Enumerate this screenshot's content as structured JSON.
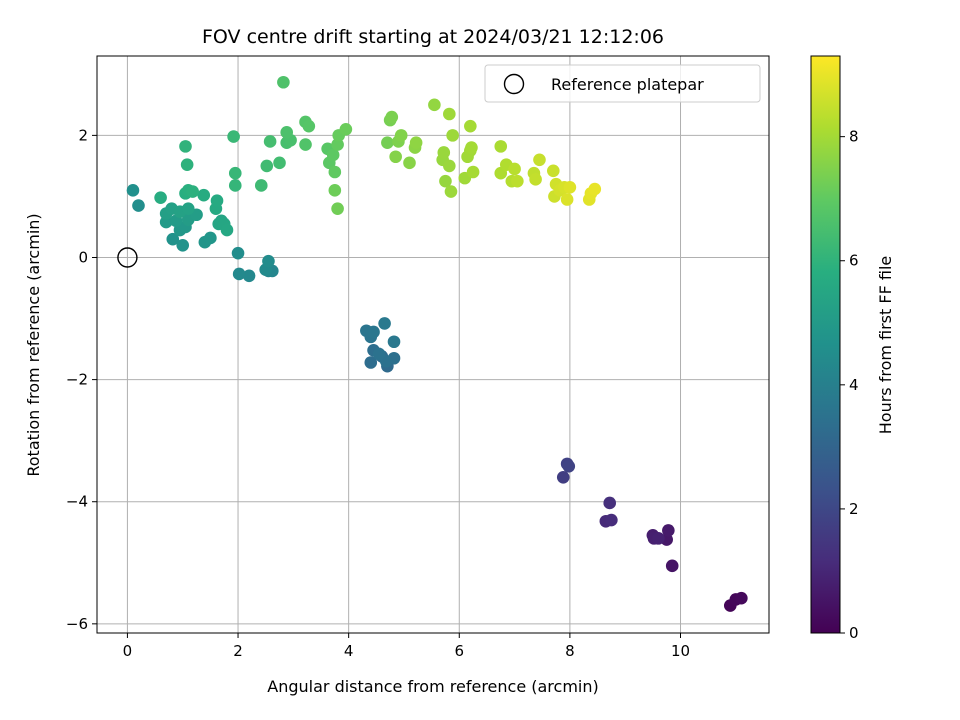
{
  "chart_data": {
    "type": "scatter",
    "title": "FOV centre drift starting at 2024/03/21 12:12:06",
    "xlabel": "Angular distance from reference (arcmin)",
    "ylabel": "Rotation from reference (arcmin)",
    "xlim": [
      -0.55,
      11.6
    ],
    "ylim": [
      -6.15,
      3.3
    ],
    "xticks": [
      0,
      2,
      4,
      6,
      8,
      10
    ],
    "yticks": [
      -6,
      -4,
      -2,
      0,
      2
    ],
    "xtick_labels": [
      "0",
      "2",
      "4",
      "6",
      "8",
      "10"
    ],
    "ytick_labels": [
      "−6",
      "−4",
      "−2",
      "0",
      "2"
    ],
    "grid": true,
    "colormap": "viridis",
    "colorbar": {
      "label": "Hours from first FF file",
      "range": [
        0,
        9.3
      ],
      "ticks": [
        0,
        2,
        4,
        6,
        8
      ],
      "tick_labels": [
        "0",
        "2",
        "4",
        "6",
        "8"
      ]
    },
    "legend": {
      "placement": "upper right",
      "entries": [
        "Reference platepar"
      ]
    },
    "reference": {
      "x": 0,
      "y": 0
    },
    "points": [
      [
        10.9,
        -5.7,
        0.1
      ],
      [
        11.0,
        -5.6,
        0.15
      ],
      [
        11.1,
        -5.58,
        0.2
      ],
      [
        9.85,
        -5.05,
        0.5
      ],
      [
        9.75,
        -4.62,
        0.6
      ],
      [
        9.78,
        -4.47,
        0.65
      ],
      [
        9.5,
        -4.55,
        0.75
      ],
      [
        9.52,
        -4.6,
        0.8
      ],
      [
        9.6,
        -4.6,
        0.85
      ],
      [
        8.65,
        -4.32,
        1.1
      ],
      [
        8.75,
        -4.3,
        1.15
      ],
      [
        8.72,
        -4.02,
        1.25
      ],
      [
        7.88,
        -3.6,
        1.7
      ],
      [
        7.95,
        -3.38,
        1.8
      ],
      [
        7.98,
        -3.42,
        1.85
      ],
      [
        4.7,
        -1.78,
        3.2
      ],
      [
        4.6,
        -1.62,
        3.25
      ],
      [
        4.4,
        -1.72,
        3.3
      ],
      [
        4.45,
        -1.52,
        3.35
      ],
      [
        4.82,
        -1.65,
        3.4
      ],
      [
        4.68,
        -1.7,
        3.45
      ],
      [
        4.55,
        -1.58,
        3.5
      ],
      [
        4.4,
        -1.3,
        3.55
      ],
      [
        4.32,
        -1.2,
        3.6
      ],
      [
        4.45,
        -1.22,
        3.65
      ],
      [
        4.82,
        -1.38,
        3.7
      ],
      [
        4.65,
        -1.08,
        3.75
      ],
      [
        2.55,
        -0.22,
        4.2
      ],
      [
        2.62,
        -0.22,
        4.25
      ],
      [
        2.2,
        -0.3,
        4.3
      ],
      [
        2.02,
        -0.27,
        4.35
      ],
      [
        2.5,
        -0.2,
        4.4
      ],
      [
        2.55,
        -0.06,
        4.45
      ],
      [
        2.0,
        0.07,
        4.5
      ],
      [
        0.2,
        0.85,
        4.55
      ],
      [
        0.1,
        1.1,
        4.6
      ],
      [
        0.82,
        0.3,
        4.7
      ],
      [
        1.0,
        0.2,
        4.75
      ],
      [
        1.4,
        0.25,
        4.8
      ],
      [
        1.5,
        0.32,
        4.85
      ],
      [
        0.95,
        0.45,
        4.9
      ],
      [
        1.05,
        0.5,
        4.95
      ],
      [
        0.7,
        0.58,
        5.0
      ],
      [
        0.88,
        0.6,
        5.05
      ],
      [
        1.1,
        0.62,
        5.1
      ],
      [
        1.25,
        0.7,
        5.15
      ],
      [
        0.7,
        0.72,
        5.2
      ],
      [
        0.8,
        0.8,
        5.25
      ],
      [
        0.95,
        0.75,
        5.3
      ],
      [
        1.1,
        0.8,
        5.35
      ],
      [
        1.7,
        0.6,
        5.4
      ],
      [
        1.65,
        0.55,
        5.45
      ],
      [
        1.75,
        0.55,
        5.5
      ],
      [
        1.8,
        0.45,
        5.55
      ],
      [
        1.6,
        0.8,
        5.6
      ],
      [
        1.62,
        0.93,
        5.65
      ],
      [
        1.38,
        1.02,
        5.7
      ],
      [
        0.6,
        0.98,
        5.75
      ],
      [
        1.05,
        1.05,
        5.8
      ],
      [
        1.1,
        1.1,
        5.85
      ],
      [
        1.18,
        1.08,
        5.9
      ],
      [
        1.08,
        1.52,
        5.95
      ],
      [
        1.05,
        1.82,
        6.0
      ],
      [
        1.95,
        1.18,
        6.1
      ],
      [
        1.95,
        1.38,
        6.15
      ],
      [
        1.92,
        1.98,
        6.2
      ],
      [
        2.42,
        1.18,
        6.3
      ],
      [
        2.52,
        1.5,
        6.35
      ],
      [
        2.75,
        1.55,
        6.4
      ],
      [
        2.58,
        1.9,
        6.45
      ],
      [
        2.88,
        1.88,
        6.5
      ],
      [
        2.95,
        1.92,
        6.55
      ],
      [
        2.88,
        2.05,
        6.6
      ],
      [
        2.82,
        2.87,
        6.65
      ],
      [
        3.22,
        1.85,
        6.7
      ],
      [
        3.22,
        2.22,
        6.75
      ],
      [
        3.28,
        2.15,
        6.8
      ],
      [
        3.62,
        1.78,
        6.85
      ],
      [
        3.65,
        1.55,
        6.9
      ],
      [
        3.72,
        1.68,
        6.95
      ],
      [
        3.75,
        1.4,
        7.0
      ],
      [
        3.8,
        1.85,
        7.05
      ],
      [
        3.82,
        2.0,
        7.1
      ],
      [
        3.95,
        2.1,
        7.15
      ],
      [
        3.75,
        1.1,
        7.2
      ],
      [
        3.8,
        0.8,
        7.25
      ],
      [
        4.7,
        1.88,
        7.3
      ],
      [
        4.75,
        2.25,
        7.35
      ],
      [
        4.78,
        2.3,
        7.4
      ],
      [
        4.9,
        1.9,
        7.45
      ],
      [
        4.95,
        2.0,
        7.5
      ],
      [
        4.85,
        1.65,
        7.55
      ],
      [
        5.1,
        1.55,
        7.6
      ],
      [
        5.2,
        1.8,
        7.65
      ],
      [
        5.22,
        1.88,
        7.7
      ],
      [
        5.55,
        2.5,
        7.75
      ],
      [
        5.75,
        1.25,
        7.8
      ],
      [
        5.7,
        1.6,
        7.82
      ],
      [
        5.72,
        1.72,
        7.84
      ],
      [
        5.82,
        1.5,
        7.86
      ],
      [
        5.85,
        1.08,
        7.88
      ],
      [
        5.88,
        2.0,
        7.9
      ],
      [
        5.82,
        2.35,
        7.92
      ],
      [
        6.1,
        1.3,
        7.94
      ],
      [
        6.15,
        1.65,
        7.96
      ],
      [
        6.2,
        1.75,
        7.98
      ],
      [
        6.22,
        1.8,
        8.0
      ],
      [
        6.2,
        2.15,
        8.02
      ],
      [
        6.25,
        1.4,
        8.04
      ],
      [
        6.75,
        1.82,
        8.1
      ],
      [
        6.75,
        1.38,
        8.15
      ],
      [
        6.85,
        1.52,
        8.2
      ],
      [
        6.95,
        1.25,
        8.25
      ],
      [
        7.0,
        1.45,
        8.3
      ],
      [
        7.05,
        1.25,
        8.35
      ],
      [
        7.35,
        1.38,
        8.4
      ],
      [
        7.38,
        1.28,
        8.45
      ],
      [
        7.45,
        1.6,
        8.5
      ],
      [
        7.7,
        1.42,
        8.55
      ],
      [
        7.72,
        1.0,
        8.6
      ],
      [
        7.75,
        1.2,
        8.65
      ],
      [
        7.82,
        1.1,
        8.7
      ],
      [
        7.9,
        1.15,
        8.75
      ],
      [
        7.95,
        0.95,
        8.8
      ],
      [
        8.0,
        1.15,
        8.85
      ],
      [
        8.35,
        0.95,
        8.9
      ],
      [
        8.38,
        1.05,
        8.95
      ],
      [
        8.45,
        1.12,
        9.0
      ]
    ]
  }
}
